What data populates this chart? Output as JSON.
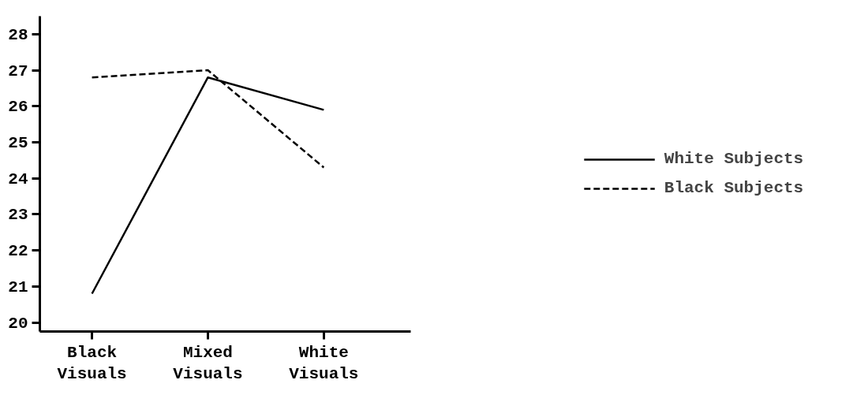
{
  "chart_data": {
    "type": "line",
    "categories": [
      "Black Visuals",
      "Mixed Visuals",
      "White Visuals"
    ],
    "series": [
      {
        "name": "White Subjects",
        "color": "#000000",
        "line_style": "solid",
        "values": [
          20.8,
          26.8,
          25.9
        ]
      },
      {
        "name": "Black Subjects",
        "color": "#000000",
        "line_style": "dashed",
        "values": [
          26.8,
          27.0,
          24.3
        ]
      }
    ],
    "ylim": [
      19.75,
      28.5
    ],
    "yticks": [
      20,
      21,
      22,
      23,
      24,
      25,
      26,
      27,
      28
    ],
    "grid": false,
    "legend": "right",
    "marker": "none"
  }
}
